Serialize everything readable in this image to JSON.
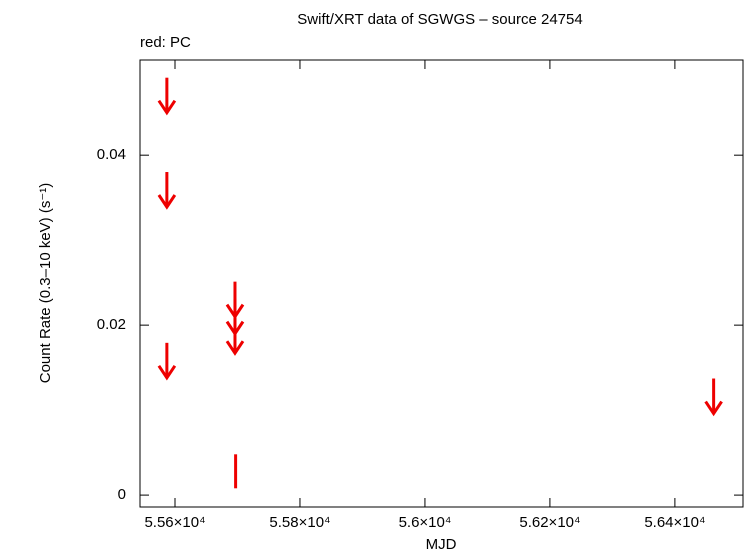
{
  "chart_data": {
    "type": "scatter",
    "title": "Swift/XRT data of SGWGS – source 24754",
    "annotation": "red: PC",
    "xlabel": "MJD",
    "ylabel": "Count Rate (0.3–10 keV) (s⁻¹)",
    "xlim": [
      55544,
      56509
    ],
    "ylim": [
      -0.0014,
      0.0512
    ],
    "xticks": [
      {
        "value": 55600,
        "label": "5.56×10⁴"
      },
      {
        "value": 55800,
        "label": "5.58×10⁴"
      },
      {
        "value": 56000,
        "label": "5.6×10⁴"
      },
      {
        "value": 56200,
        "label": "5.62×10⁴"
      },
      {
        "value": 56400,
        "label": "5.64×10⁴"
      }
    ],
    "yticks": [
      0,
      0.02,
      0.04
    ],
    "color": "#ee0000",
    "upper_limits": {
      "x": [
        55587,
        55587,
        55587,
        55696,
        55696,
        55696,
        56462
      ],
      "values": [
        0.045,
        0.0339,
        0.0138,
        0.021,
        0.019,
        0.0167,
        0.0096
      ]
    },
    "points": {
      "x": [
        55697
      ],
      "values": [
        0.0028
      ],
      "errors": [
        0.002
      ]
    }
  }
}
